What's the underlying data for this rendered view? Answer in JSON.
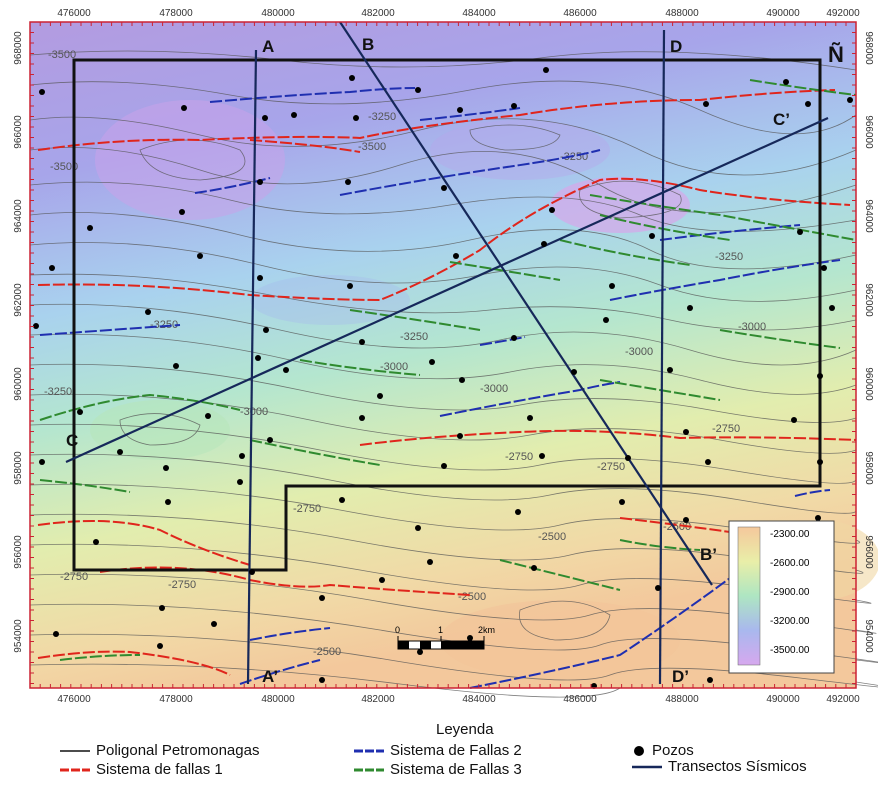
{
  "map": {
    "north_label": "Ñ",
    "x_ticks": [
      "476000",
      "478000",
      "480000",
      "482000",
      "484000",
      "486000",
      "488000",
      "490000",
      "492000"
    ],
    "y_ticks": [
      "968000",
      "966000",
      "964000",
      "962000",
      "960000",
      "958000",
      "956000",
      "954000"
    ],
    "contour_labels": [
      "-3500",
      "-3500",
      "-3500",
      "-3250",
      "-3250",
      "-3250",
      "-3250",
      "-3250",
      "-3000",
      "-3000",
      "-3000",
      "-3000",
      "-3000",
      "-3250",
      "-2750",
      "-2750",
      "-2750",
      "-2750",
      "-2750",
      "-2750",
      "-2500",
      "-2500",
      "-2500",
      "-2500"
    ],
    "transects": {
      "A": "A",
      "A_prime": "A’",
      "B": "B",
      "B_prime": "B’",
      "C": "C",
      "C_prime": "C’",
      "D": "D",
      "D_prime": "D’"
    },
    "scale_bar": {
      "zero": "0",
      "one": "1",
      "two": "2km"
    },
    "colorbar": {
      "labels": [
        "-2300.00",
        "-2600.00",
        "-2900.00",
        "-3200.00",
        "-3500.00"
      ]
    },
    "colors": {
      "fallas1": "#e0251c",
      "fallas2": "#1f2fb0",
      "fallas3": "#2f8a2f",
      "transect": "#16285a",
      "poligonal": "#111111"
    }
  },
  "legend": {
    "title": "Leyenda",
    "items": {
      "poligonal": "Poligonal Petromonagas",
      "fallas1": "Sistema de fallas 1",
      "fallas2": "Sistema de Fallas 2",
      "fallas3": "Sistema de Fallas 3",
      "pozos": "Pozos",
      "transectos": "Transectos Sísmicos"
    }
  }
}
